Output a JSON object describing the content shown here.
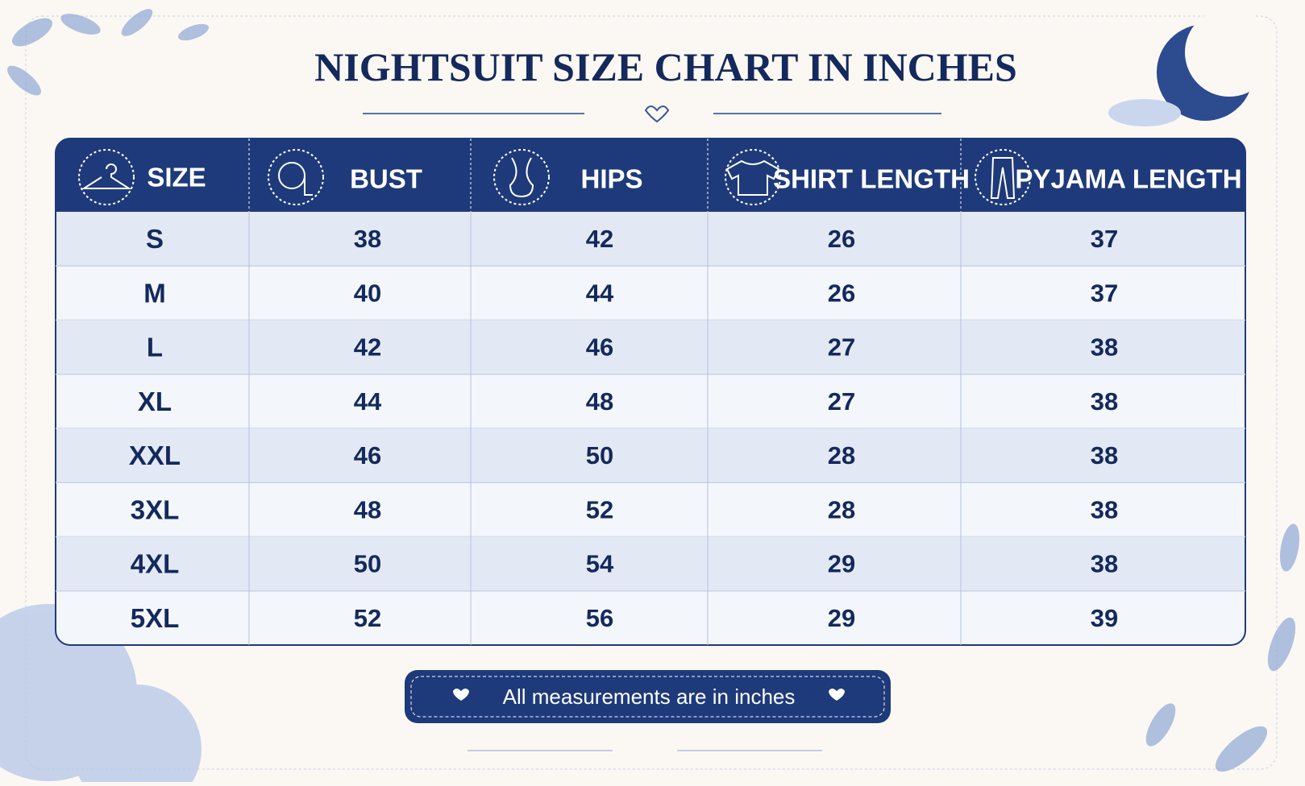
{
  "header": {
    "title": "NIGHTSUIT SIZE CHART IN INCHES"
  },
  "table": {
    "columns": [
      "SIZE",
      "BUST",
      "HIPS",
      "SHIRT LENGTH",
      "PYJAMA LENGTH"
    ],
    "rows": [
      [
        "S",
        38,
        42,
        26,
        37
      ],
      [
        "M",
        40,
        44,
        26,
        37
      ],
      [
        "L",
        42,
        46,
        27,
        38
      ],
      [
        "XL",
        44,
        48,
        27,
        38
      ],
      [
        "XXL",
        46,
        50,
        28,
        38
      ],
      [
        "3XL",
        48,
        52,
        28,
        38
      ],
      [
        "4XL",
        50,
        54,
        29,
        38
      ],
      [
        "5XL",
        52,
        56,
        29,
        39
      ]
    ]
  },
  "footer": {
    "note": "All measurements are in inches"
  }
}
